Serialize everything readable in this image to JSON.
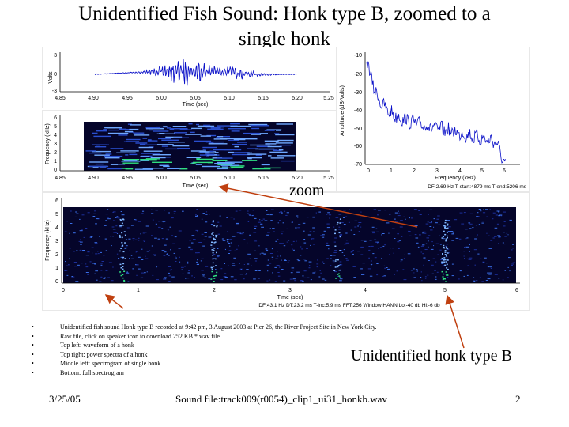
{
  "title_line1": "Unidentified Fish Sound: Honk type B, zoomed to a",
  "title_line2": "single honk",
  "panels": {
    "waveform": {
      "ylabel": "Volts",
      "xlabel": "Time (sec)",
      "yticks": [
        "3",
        "0",
        "-3"
      ],
      "xticks": [
        "4.85",
        "4.90",
        "4.95",
        "5.00",
        "5.05",
        "5.10",
        "5.15",
        "5.20",
        "5.25"
      ]
    },
    "zoom_spectrogram": {
      "ylabel": "Frequency (kHz)",
      "xlabel": "Time (sec)",
      "yticks": [
        "6",
        "5",
        "4",
        "3",
        "2",
        "1",
        "0"
      ],
      "xticks": [
        "4.85",
        "4.90",
        "4.95",
        "5.00",
        "5.05",
        "5.10",
        "5.15",
        "5.20",
        "5.25"
      ]
    },
    "power_spectrum": {
      "ylabel": "Amplitude (dB-Volts)",
      "xlabel": "Frequency (kHz)",
      "yticks": [
        "-10",
        "-20",
        "-30",
        "-40",
        "-50",
        "-60",
        "-70"
      ],
      "xticks": [
        "0",
        "1",
        "2",
        "3",
        "4",
        "5",
        "6"
      ],
      "info": "DF:2.69 Hz   T-start:4879 ms   T-end:5206 ms"
    },
    "full_spectrogram": {
      "ylabel": "Frequency (kHz)",
      "xlabel": "Time (sec)",
      "yticks": [
        "6",
        "5",
        "4",
        "3",
        "2",
        "1",
        "0"
      ],
      "xticks": [
        "0",
        "1",
        "2",
        "3",
        "4",
        "5",
        "6"
      ],
      "info": "DF:43.1 Hz   DT:23.2 ms   T-inc:5.9 ms   FFT:256   Window:HANN   Lo:-40 db   Hi:-6 db"
    }
  },
  "callouts": {
    "zoom": "zoom",
    "honk": "Unidentified honk type B"
  },
  "notes": [
    "Unidentified fish sound Honk type B recorded at 9:42 pm, 3 August 2003 at Pier 26, the River Project Site in New York City.",
    "Raw file, click on speaker icon to download 252 KB *.wav file",
    "Top left: waveform of a honk",
    "Top right: power spectra of a honk",
    "Middle left: spectrogram of single honk",
    "Bottom: full spectrogram"
  ],
  "footer": {
    "date": "3/25/05",
    "file": "Sound file:track009(r0054)_clip1_ui31_honkb.wav",
    "page": "2"
  },
  "colors": {
    "waveform_line": "#0a10c8",
    "spectrogram_bg": "#05052a",
    "spectrogram_hot": "#20d070",
    "arrow": "#c04010"
  }
}
